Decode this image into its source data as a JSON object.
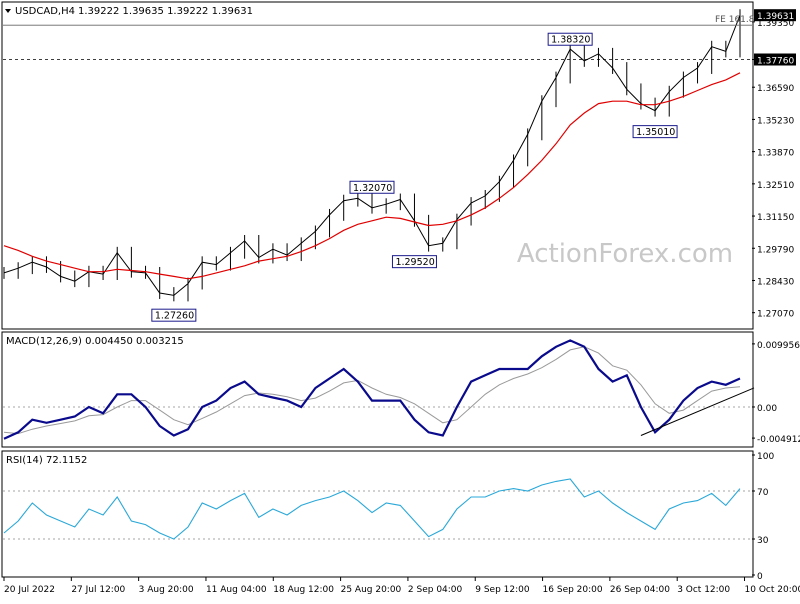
{
  "header": {
    "symbol": "USDCAD,H4",
    "ohlc": "1.39222 1.39635 1.39222 1.39631"
  },
  "watermark": "ActionForex.com",
  "colors": {
    "price": "#000000",
    "ma": "#e00000",
    "macd": "#0a0a8c",
    "signal": "#9a9a9a",
    "rsi": "#2aa8d8",
    "grid": "#888888",
    "label_border": "#1a1a8c",
    "label_bg": "#ffffff",
    "price_tag_bg": "#000000",
    "price_tag_fg": "#ffffff",
    "watermark": "#c8c8c8"
  },
  "chart_data": [
    {
      "type": "line",
      "panel": "price",
      "ylim": [
        1.2655,
        1.3985
      ],
      "y_ticks": [
        "1.39350",
        "1.37760",
        "1.36590",
        "1.35230",
        "1.33870",
        "1.32510",
        "1.31150",
        "1.29790",
        "1.28430",
        "1.27070"
      ],
      "x_tick_labels": [
        "20 Jul 2022",
        "27 Jul 12:00",
        "3 Aug 20:00",
        "11 Aug 04:00",
        "18 Aug 12:00",
        "25 Aug 20:00",
        "2 Sep 04:00",
        "9 Sep 12:00",
        "16 Sep 20:00",
        "26 Sep 04:00",
        "3 Oct 12:00",
        "10 Oct 20:00"
      ],
      "series": [
        {
          "values": [
            1.2875,
            1.2895,
            1.292,
            1.29,
            1.286,
            1.284,
            1.288,
            1.287,
            1.296,
            1.288,
            1.2875,
            1.279,
            1.278,
            1.283,
            1.292,
            1.291,
            1.296,
            1.301,
            1.294,
            1.2975,
            1.295,
            1.3,
            1.305,
            1.312,
            1.318,
            1.319,
            1.315,
            1.3165,
            1.3185,
            1.3095,
            1.299,
            1.3,
            1.31,
            1.317,
            1.32,
            1.326,
            1.335,
            1.346,
            1.36,
            1.37,
            1.382,
            1.377,
            1.38,
            1.374,
            1.365,
            1.359,
            1.356,
            1.364,
            1.37,
            1.374,
            1.383,
            1.381,
            1.3963
          ]
        },
        {
          "values": [
            1.299,
            1.297,
            1.2945,
            1.2925,
            1.291,
            1.2895,
            1.288,
            1.288,
            1.289,
            1.2885,
            1.288,
            1.287,
            1.286,
            1.285,
            1.286,
            1.2875,
            1.289,
            1.2905,
            1.2925,
            1.2935,
            1.2945,
            1.2965,
            1.299,
            1.302,
            1.3055,
            1.308,
            1.3095,
            1.311,
            1.3105,
            1.309,
            1.3075,
            1.308,
            1.3095,
            1.312,
            1.315,
            1.319,
            1.3235,
            1.329,
            1.335,
            1.342,
            1.35,
            1.355,
            1.359,
            1.36,
            1.36,
            1.3585,
            1.3585,
            1.36,
            1.362,
            1.3645,
            1.367,
            1.369,
            1.372
          ]
        }
      ],
      "annotations": [
        "1.38320",
        "1.35010",
        "1.32070",
        "1.29520",
        "1.27260",
        "FE 161.8"
      ],
      "price_tags": [
        "1.39631",
        "1.37760"
      ]
    },
    {
      "type": "line",
      "panel": "macd",
      "title": "MACD(12,26,9) 0.004450 0.003215",
      "ylim": [
        -0.006,
        0.0112
      ],
      "y_ticks": [
        "0.009956",
        "0.00",
        "-0.004912"
      ],
      "series": [
        {
          "values": [
            -0.005,
            -0.004,
            -0.002,
            -0.0025,
            -0.002,
            -0.0015,
            0.0,
            -0.001,
            0.002,
            0.002,
            0.0,
            -0.003,
            -0.0045,
            -0.0035,
            0.0,
            0.001,
            0.003,
            0.004,
            0.002,
            0.0015,
            0.001,
            0.0,
            0.003,
            0.0045,
            0.006,
            0.004,
            0.001,
            0.001,
            0.001,
            -0.002,
            -0.004,
            -0.0045,
            0.0,
            0.004,
            0.005,
            0.006,
            0.006,
            0.006,
            0.008,
            0.0095,
            0.0105,
            0.0095,
            0.006,
            0.004,
            0.005,
            0.0,
            -0.004,
            -0.002,
            0.001,
            0.003,
            0.004,
            0.0035,
            0.0045
          ]
        },
        {
          "values": [
            -0.004,
            -0.0042,
            -0.0035,
            -0.003,
            -0.0026,
            -0.0022,
            -0.0014,
            -0.0012,
            0.0,
            0.001,
            0.001,
            -0.0005,
            -0.002,
            -0.0028,
            -0.0018,
            -0.0008,
            0.0005,
            0.0018,
            0.0022,
            0.002,
            0.0016,
            0.001,
            0.0014,
            0.0025,
            0.0038,
            0.0042,
            0.003,
            0.002,
            0.0015,
            0.0005,
            -0.001,
            -0.0025,
            -0.002,
            0.0,
            0.002,
            0.0035,
            0.0045,
            0.0052,
            0.0062,
            0.0075,
            0.009,
            0.0095,
            0.0085,
            0.0065,
            0.0058,
            0.0035,
            0.0005,
            -0.001,
            -0.0005,
            0.001,
            0.0025,
            0.003,
            0.0032
          ]
        }
      ]
    },
    {
      "type": "line",
      "panel": "rsi",
      "title": "RSI(14) 72.1152",
      "ylim": [
        0,
        100
      ],
      "y_ticks": [
        "100",
        "70",
        "30",
        "0"
      ],
      "levels": [
        70,
        30
      ],
      "series": [
        {
          "values": [
            35,
            45,
            60,
            50,
            45,
            40,
            55,
            50,
            65,
            45,
            42,
            35,
            30,
            40,
            60,
            55,
            62,
            68,
            48,
            55,
            50,
            58,
            62,
            65,
            70,
            62,
            52,
            60,
            58,
            45,
            32,
            38,
            55,
            65,
            65,
            70,
            72,
            70,
            75,
            78,
            80,
            65,
            70,
            60,
            52,
            45,
            38,
            55,
            60,
            62,
            68,
            58,
            72
          ]
        }
      ]
    }
  ]
}
